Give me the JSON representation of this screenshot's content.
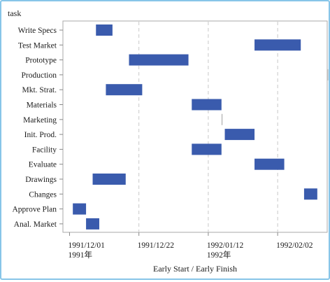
{
  "chart_data": {
    "type": "gantt",
    "title": "",
    "ylabel": "task",
    "xlabel": "Early Start / Early Finish",
    "xlim": [
      "1991-11-29",
      "1992-02-17"
    ],
    "x_ticks": [
      {
        "date": "1991-12-01",
        "label": "1991/12/01",
        "sublabel": "1991年"
      },
      {
        "date": "1991-12-22",
        "label": "1991/12/22",
        "sublabel": ""
      },
      {
        "date": "1992-01-12",
        "label": "1992/01/12",
        "sublabel": "1992年"
      },
      {
        "date": "1992-02-02",
        "label": "1992/02/02",
        "sublabel": ""
      }
    ],
    "grid": "vertical dashed",
    "bar_color": "#3a5bad",
    "tasks": [
      {
        "task": "Write Specs",
        "start": "1991-12-09",
        "finish": "1991-12-14"
      },
      {
        "task": "Test Market",
        "start": "1992-01-26",
        "finish": "1992-02-09"
      },
      {
        "task": "Prototype",
        "start": "1991-12-19",
        "finish": "1992-01-06"
      },
      {
        "task": "Production",
        "start": "1992-02-17",
        "finish": "1992-02-17"
      },
      {
        "task": "Mkt. Strat.",
        "start": "1991-12-12",
        "finish": "1991-12-23"
      },
      {
        "task": "Materials",
        "start": "1992-01-07",
        "finish": "1992-01-16"
      },
      {
        "task": "Marketing",
        "start": "1992-01-16",
        "finish": "1992-01-16"
      },
      {
        "task": "Init. Prod.",
        "start": "1992-01-17",
        "finish": "1992-01-26"
      },
      {
        "task": "Facility",
        "start": "1992-01-07",
        "finish": "1992-01-16"
      },
      {
        "task": "Evaluate",
        "start": "1992-01-26",
        "finish": "1992-02-04"
      },
      {
        "task": "Drawings",
        "start": "1991-12-08",
        "finish": "1991-12-18"
      },
      {
        "task": "Changes",
        "start": "1992-02-10",
        "finish": "1992-02-14"
      },
      {
        "task": "Approve Plan",
        "start": "1991-12-02",
        "finish": "1991-12-06"
      },
      {
        "task": "Anal. Market",
        "start": "1991-12-06",
        "finish": "1991-12-10"
      }
    ]
  }
}
